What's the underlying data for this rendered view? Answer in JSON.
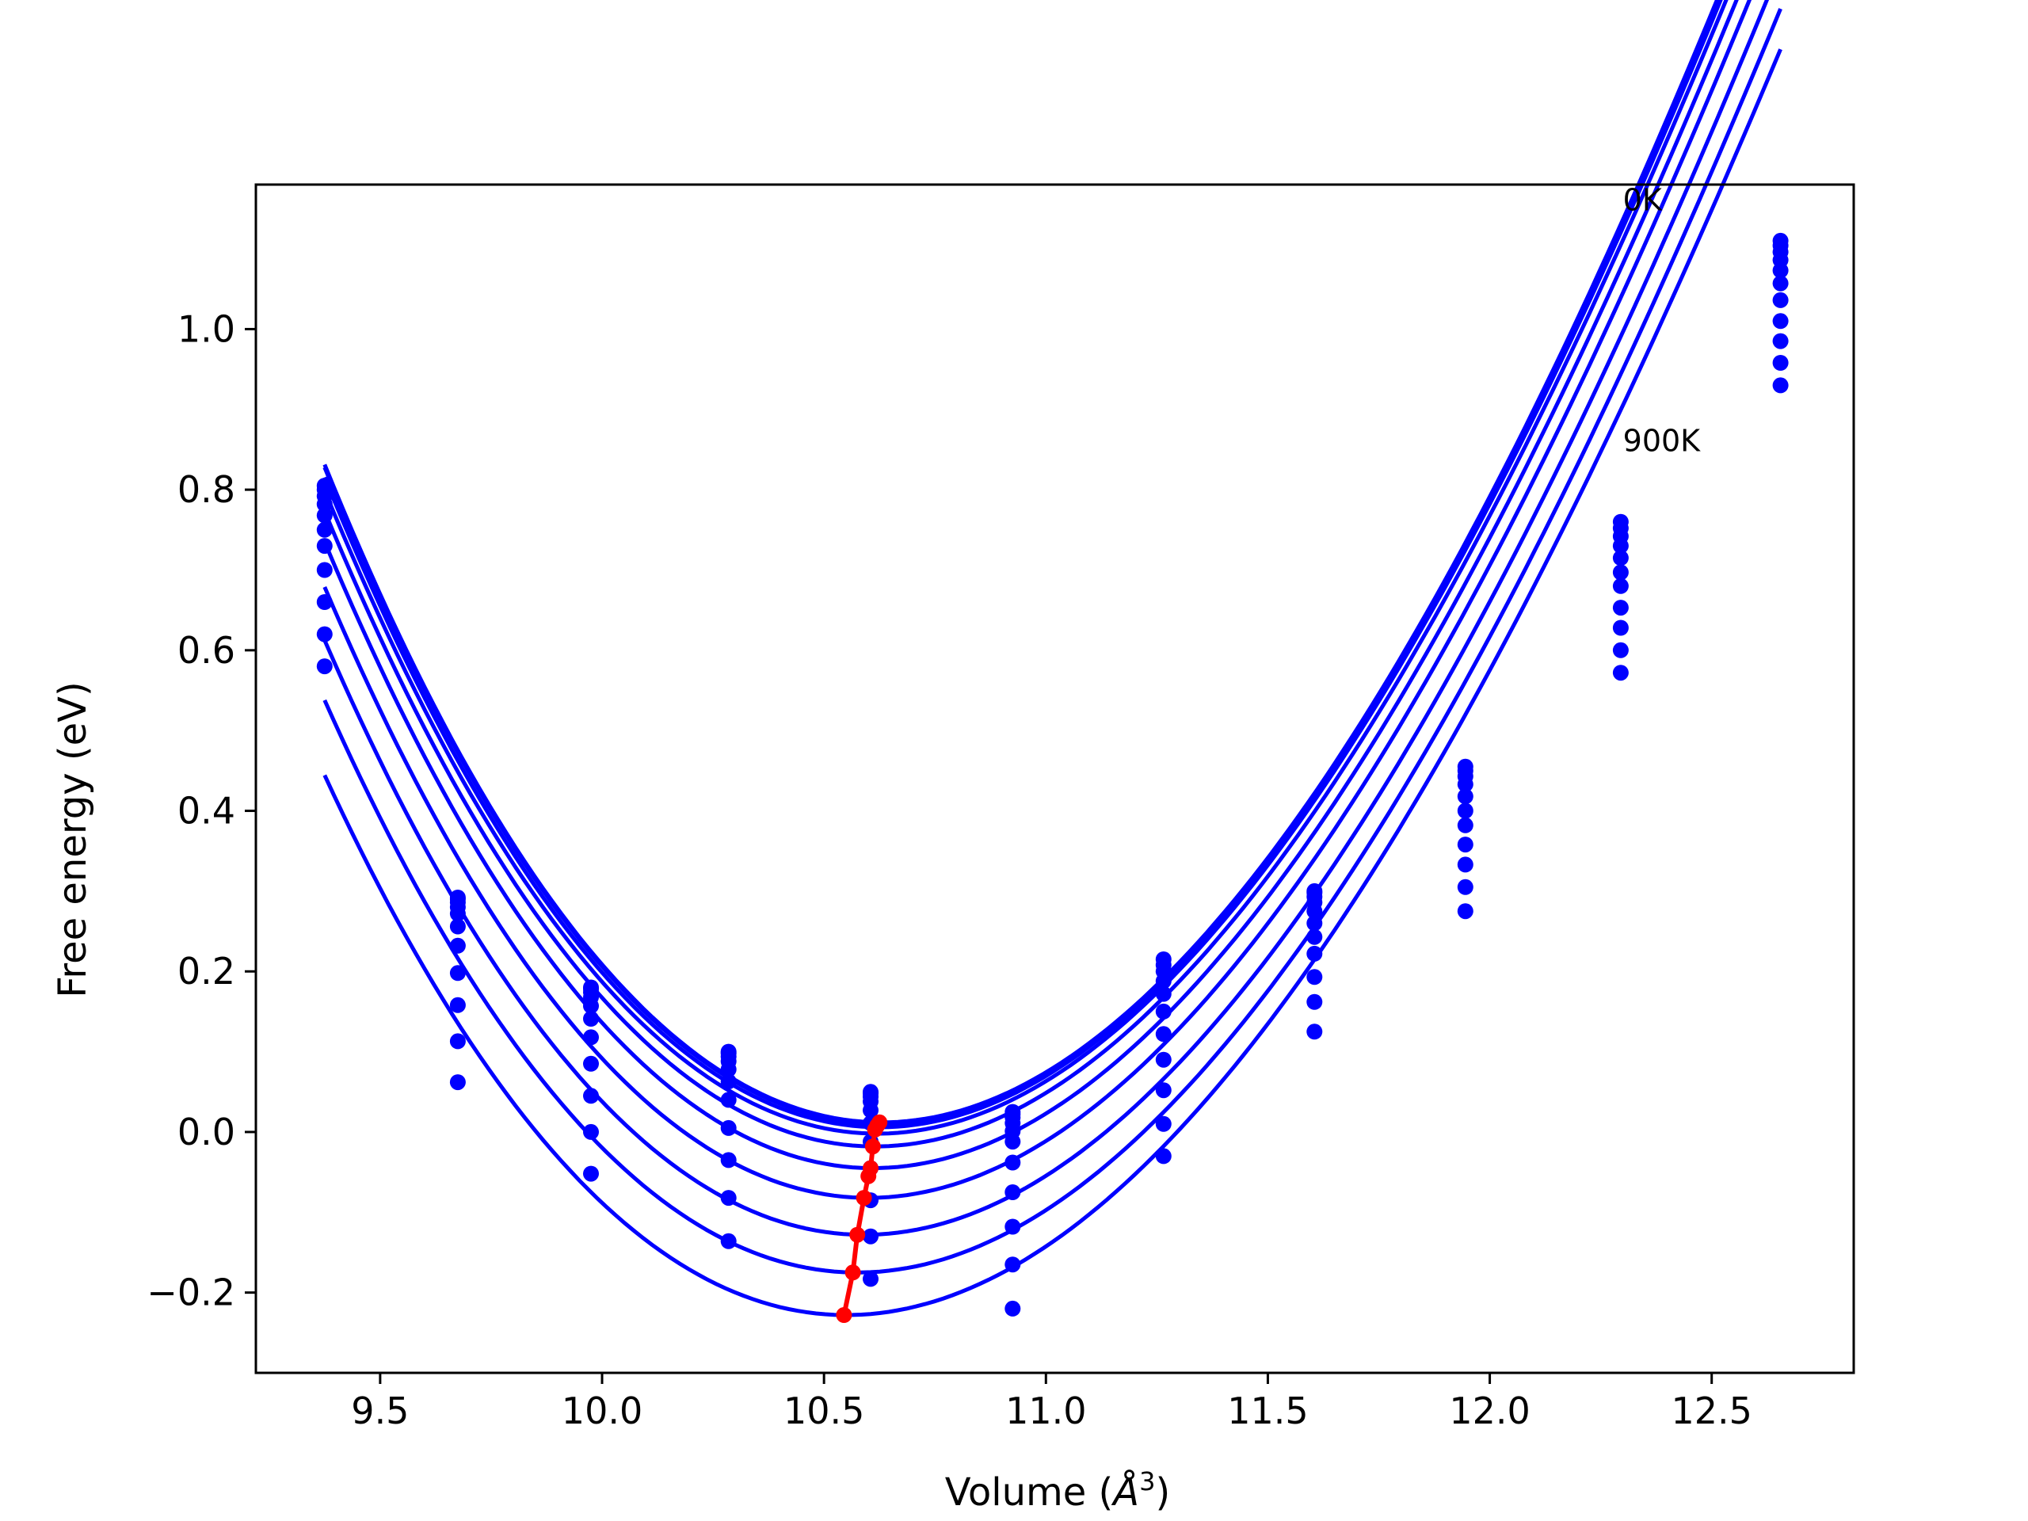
{
  "chart_data": {
    "type": "line",
    "title": "",
    "xlabel": "Volume (",
    "xlabel_unit_base": "Å",
    "xlabel_unit_sup": "3",
    "xlabel_close": ")",
    "ylabel": "Free energy (eV)",
    "xlim": [
      9.22,
      12.82
    ],
    "ylim": [
      -0.3,
      1.18
    ],
    "xticks": [
      9.5,
      10.0,
      10.5,
      11.0,
      11.5,
      12.0,
      12.5
    ],
    "xtick_labels": [
      "9.5",
      "10.0",
      "10.5",
      "11.0",
      "11.5",
      "12.0",
      "12.5"
    ],
    "yticks": [
      -0.2,
      0.0,
      0.2,
      0.4,
      0.6,
      0.8,
      1.0
    ],
    "ytick_labels": [
      "−0.2",
      "0.0",
      "0.2",
      "0.4",
      "0.6",
      "0.8",
      "1.0"
    ],
    "grid": false,
    "legend": "none",
    "annotations": [
      {
        "text": "0K",
        "x": 12.3,
        "y": 1.16
      },
      {
        "text": "900K",
        "x": 12.3,
        "y": 0.86
      }
    ],
    "volumes": [
      9.375,
      9.675,
      9.975,
      10.285,
      10.605,
      10.925,
      11.265,
      11.605,
      11.945,
      12.295,
      12.655
    ],
    "temperature_series": [
      {
        "values": [
          0.805,
          0.292,
          0.18,
          0.1,
          0.05,
          0.025,
          0.215,
          0.3,
          0.455,
          0.76,
          1.11
        ]
      },
      {
        "values": [
          0.8,
          0.29,
          0.178,
          0.098,
          0.048,
          0.022,
          0.208,
          0.298,
          0.45,
          0.752,
          1.104
        ]
      },
      {
        "values": [
          0.792,
          0.286,
          0.174,
          0.094,
          0.044,
          0.018,
          0.2,
          0.293,
          0.443,
          0.742,
          1.096
        ]
      },
      {
        "values": [
          0.782,
          0.28,
          0.168,
          0.088,
          0.038,
          0.011,
          0.188,
          0.286,
          0.433,
          0.73,
          1.086
        ]
      },
      {
        "values": [
          0.768,
          0.272,
          0.157,
          0.078,
          0.027,
          0.001,
          0.172,
          0.275,
          0.418,
          0.715,
          1.073
        ]
      },
      {
        "values": [
          0.75,
          0.256,
          0.141,
          0.063,
          0.011,
          -0.012,
          0.15,
          0.26,
          0.4,
          0.697,
          1.057
        ]
      },
      {
        "values": [
          0.73,
          0.232,
          0.118,
          0.04,
          -0.012,
          -0.038,
          0.122,
          0.243,
          0.382,
          0.68,
          1.036
        ]
      },
      {
        "values": [
          0.7,
          0.198,
          0.085,
          0.005,
          -0.045,
          -0.075,
          0.09,
          0.222,
          0.358,
          0.653,
          1.01
        ]
      },
      {
        "values": [
          0.66,
          0.158,
          0.045,
          -0.035,
          -0.085,
          -0.118,
          0.052,
          0.193,
          0.333,
          0.628,
          0.985
        ]
      },
      {
        "values": [
          0.62,
          0.113,
          0.0,
          -0.082,
          -0.13,
          -0.165,
          0.01,
          0.162,
          0.305,
          0.6,
          0.958
        ]
      },
      {
        "values": [
          0.58,
          0.062,
          -0.052,
          -0.136,
          -0.183,
          -0.22,
          -0.03,
          0.125,
          0.275,
          0.572,
          0.93
        ]
      }
    ],
    "fit_curves": [
      {
        "v0": 10.63,
        "e0": 0.012,
        "a": 0.47,
        "b": -0.04
      },
      {
        "v0": 10.63,
        "e0": 0.01,
        "a": 0.469,
        "b": -0.04
      },
      {
        "v0": 10.625,
        "e0": 0.006,
        "a": 0.468,
        "b": -0.04
      },
      {
        "v0": 10.62,
        "e0": -0.002,
        "a": 0.467,
        "b": -0.04
      },
      {
        "v0": 10.615,
        "e0": -0.018,
        "a": 0.465,
        "b": -0.04
      },
      {
        "v0": 10.61,
        "e0": -0.045,
        "a": 0.462,
        "b": -0.04
      },
      {
        "v0": 10.6,
        "e0": -0.082,
        "a": 0.458,
        "b": -0.04
      },
      {
        "v0": 10.59,
        "e0": -0.128,
        "a": 0.453,
        "b": -0.04
      },
      {
        "v0": 10.575,
        "e0": -0.175,
        "a": 0.447,
        "b": -0.04
      },
      {
        "v0": 10.55,
        "e0": -0.228,
        "a": 0.44,
        "b": -0.04
      }
    ],
    "fit_range": [
      9.375,
      12.655
    ],
    "minimum_path": {
      "x": [
        10.625,
        10.62,
        10.615,
        10.61,
        10.605,
        10.6,
        10.59,
        10.575,
        10.565,
        10.545
      ],
      "y": [
        0.012,
        0.008,
        0.003,
        -0.018,
        -0.045,
        -0.055,
        -0.082,
        -0.128,
        -0.175,
        -0.228
      ]
    },
    "colors": {
      "series": "#0000ff",
      "minimum_path": "#ff0000",
      "axes": "#000000"
    }
  }
}
